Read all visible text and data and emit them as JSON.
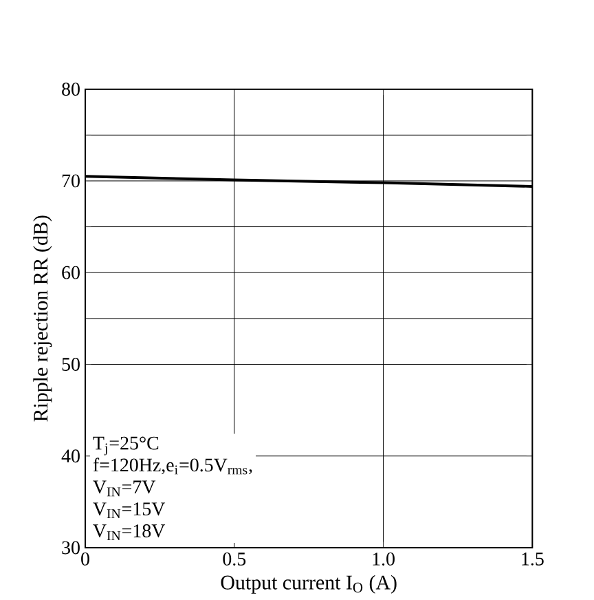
{
  "chart_data": {
    "type": "line",
    "xlabel": "Output current I$_{O}$ (A)",
    "ylabel": "Ripple rejection RR (dB)",
    "x": [
      0,
      0.5,
      1.0,
      1.5
    ],
    "series": [
      {
        "color": "#000000",
        "values": [
          70.5,
          70.1,
          69.8,
          69.4
        ]
      }
    ],
    "xlim": [
      0,
      1.5
    ],
    "xticks": [
      0,
      0.5,
      {
        "value": 1.0,
        "label": "1.0"
      },
      1.5
    ],
    "ylim": [
      30,
      80
    ],
    "yticks": [
      30,
      40,
      50,
      {
        "value": 55,
        "label": null
      },
      60,
      {
        "value": 65,
        "label": null
      },
      70,
      {
        "value": 75,
        "label": null
      },
      80
    ],
    "grid": true,
    "marker": "none",
    "line_style": "solid",
    "annotations": [
      "T$_{j}$=25°C",
      "f=120Hz,e$_{i}$=0.5V$_{rms}$,",
      "V$_{IN}$=7V",
      "V$_{IN}$=15V",
      "V$_{IN}$=18V"
    ]
  }
}
